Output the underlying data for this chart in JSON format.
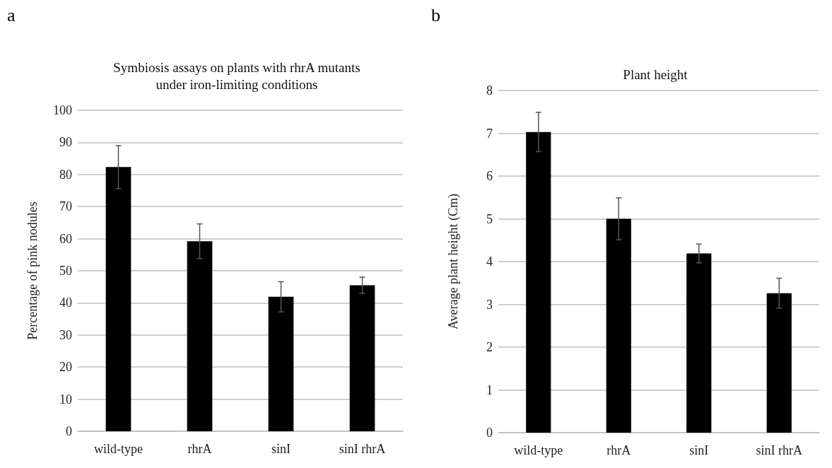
{
  "chart_data": [
    {
      "type": "bar",
      "title": "Symbiosis assays on plants with rhrA mutants\nunder iron-limiting conditions",
      "ylabel": "Percentage of pink nodules",
      "categories": [
        "wild-type",
        "rhrA",
        "sinI",
        "sinI rhrA"
      ],
      "values": [
        82.3,
        59.2,
        41.9,
        45.5
      ],
      "errors": [
        6.7,
        5.4,
        4.7,
        2.5
      ],
      "color": "#000000",
      "ylim": [
        0,
        100
      ],
      "yticks": [
        0,
        10,
        20,
        30,
        40,
        50,
        60,
        70,
        80,
        90,
        100
      ],
      "grid": "y",
      "annotations": [
        "a"
      ]
    },
    {
      "type": "bar",
      "title": "Plant height",
      "ylabel": "Average plant height (Cm)",
      "categories": [
        "wild-type",
        "rhrA",
        "sinI",
        "sinI rhrA"
      ],
      "values": [
        7.03,
        5.0,
        4.19,
        3.26
      ],
      "errors": [
        0.46,
        0.49,
        0.22,
        0.35
      ],
      "color": "#000000",
      "ylim": [
        0,
        8
      ],
      "yticks": [
        0,
        1,
        2,
        3,
        4,
        5,
        6,
        7,
        8
      ],
      "grid": "y",
      "annotations": [
        "b"
      ]
    }
  ]
}
